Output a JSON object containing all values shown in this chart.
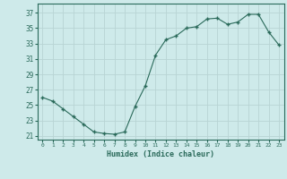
{
  "x": [
    0,
    1,
    2,
    3,
    4,
    5,
    6,
    7,
    8,
    9,
    10,
    11,
    12,
    13,
    14,
    15,
    16,
    17,
    18,
    19,
    20,
    21,
    22,
    23
  ],
  "y": [
    26,
    25.5,
    24.5,
    23.5,
    22.5,
    21.5,
    21.3,
    21.2,
    21.5,
    24.8,
    27.5,
    31.5,
    33.5,
    34.0,
    35.0,
    35.2,
    36.2,
    36.3,
    35.5,
    35.8,
    36.8,
    36.8,
    34.5,
    32.8
  ],
  "bg_color": "#ceeaea",
  "grid_color": "#b8d4d4",
  "line_color": "#2a6a5a",
  "marker_color": "#2a6a5a",
  "xlabel": "Humidex (Indice chaleur)",
  "yticks": [
    21,
    23,
    25,
    27,
    29,
    31,
    33,
    35,
    37
  ],
  "xtick_labels": [
    "0",
    "1",
    "2",
    "3",
    "4",
    "5",
    "6",
    "7",
    "8",
    "9",
    "10",
    "11",
    "12",
    "13",
    "14",
    "15",
    "16",
    "17",
    "18",
    "19",
    "20",
    "21",
    "22",
    "23"
  ],
  "ylim": [
    20.5,
    38.2
  ],
  "xlim": [
    -0.5,
    23.5
  ]
}
